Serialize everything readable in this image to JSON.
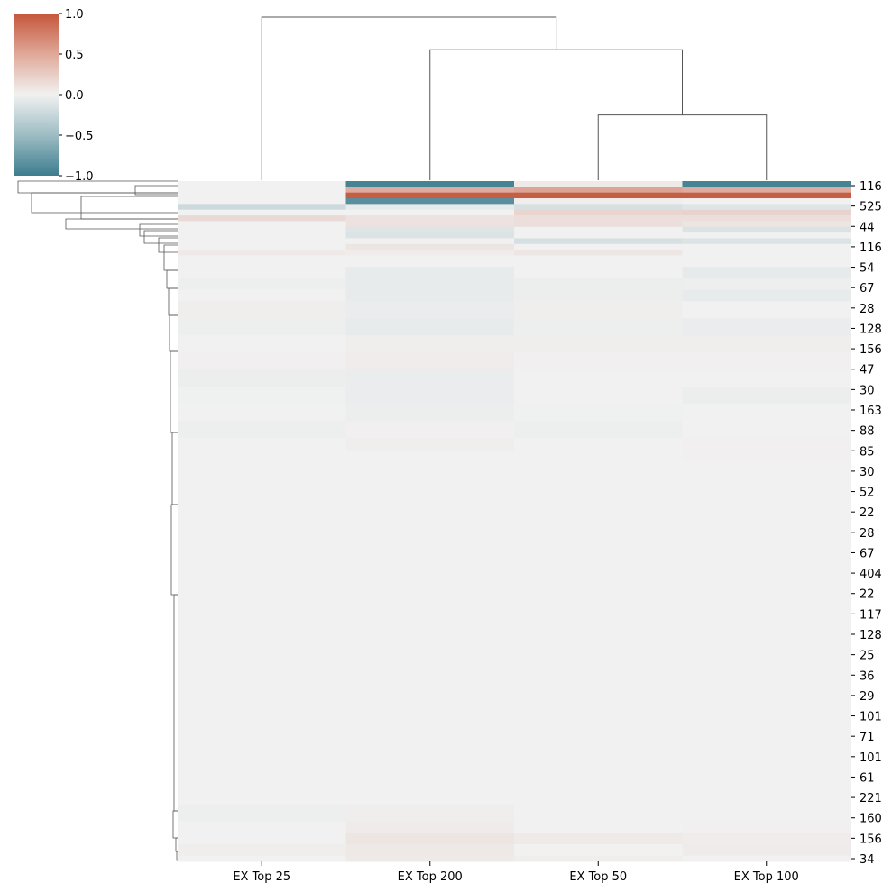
{
  "chart_data": {
    "type": "heatmap",
    "subtype": "clustermap",
    "title": "",
    "xlabel": "",
    "ylabel": "",
    "columns": [
      "EX Top 25",
      "EX Top 200",
      "EX Top 50",
      "EX Top 100"
    ],
    "row_tick_labels": [
      "116",
      "525",
      "44",
      "116",
      "54",
      "67",
      "28",
      "128",
      "156",
      "47",
      "30",
      "163",
      "88",
      "85",
      "30",
      "52",
      "22",
      "28",
      "67",
      "404",
      "22",
      "117",
      "128",
      "25",
      "36",
      "29",
      "101",
      "71",
      "101",
      "61",
      "221",
      "160",
      "156",
      "34"
    ],
    "colorbar": {
      "min": -1.0,
      "max": 1.0,
      "ticks": [
        1.0,
        0.5,
        0.0,
        -0.5,
        -1.0
      ],
      "tick_labels": [
        "1.0",
        "0.5",
        "0.0",
        "−0.5",
        "−1.0"
      ],
      "colors": {
        "low": "#3d7d8e",
        "mid": "#f1f1f1",
        "high": "#c4563b"
      }
    },
    "row_bands": [
      {
        "rows": 1,
        "values": [
          0.0,
          -0.95,
          0.05,
          -0.95
        ]
      },
      {
        "rows": 1,
        "values": [
          0.0,
          0.45,
          0.5,
          0.45
        ]
      },
      {
        "rows": 1,
        "values": [
          0.0,
          0.95,
          0.95,
          0.95
        ]
      },
      {
        "rows": 1,
        "values": [
          0.0,
          -0.85,
          0.02,
          0.0
        ]
      },
      {
        "rows": 1,
        "values": [
          -0.2,
          -0.05,
          -0.15,
          -0.1
        ]
      },
      {
        "rows": 1,
        "values": [
          0.0,
          0.0,
          0.18,
          0.2
        ]
      },
      {
        "rows": 1,
        "values": [
          0.15,
          0.1,
          0.12,
          0.12
        ]
      },
      {
        "rows": 1,
        "values": [
          0.0,
          0.1,
          0.12,
          0.08
        ]
      },
      {
        "rows": 1,
        "values": [
          0.0,
          -0.1,
          0.0,
          -0.12
        ]
      },
      {
        "rows": 1,
        "values": [
          0.0,
          -0.12,
          0.0,
          0.0
        ]
      },
      {
        "rows": 1,
        "values": [
          0.0,
          0.0,
          -0.15,
          -0.12
        ]
      },
      {
        "rows": 1,
        "values": [
          0.0,
          0.08,
          0.0,
          0.0
        ]
      },
      {
        "rows": 1,
        "values": [
          0.05,
          0.03,
          0.07,
          0.0
        ]
      },
      {
        "rows": 2,
        "values": [
          0.0,
          0.0,
          0.0,
          0.0
        ]
      },
      {
        "rows": 2,
        "values": [
          0.0,
          -0.05,
          0.0,
          -0.06
        ]
      },
      {
        "rows": 2,
        "values": [
          -0.02,
          -0.05,
          -0.03,
          -0.02
        ]
      },
      {
        "rows": 2,
        "values": [
          0.0,
          -0.05,
          -0.03,
          -0.05
        ]
      },
      {
        "rows": 3,
        "values": [
          0.02,
          -0.04,
          0.02,
          0.0
        ]
      },
      {
        "rows": 3,
        "values": [
          -0.02,
          -0.05,
          -0.02,
          -0.04
        ]
      },
      {
        "rows": 3,
        "values": [
          0.0,
          0.02,
          0.02,
          0.02
        ]
      },
      {
        "rows": 3,
        "values": [
          0.01,
          0.03,
          0.01,
          0.01
        ]
      },
      {
        "rows": 3,
        "values": [
          -0.03,
          -0.04,
          0.0,
          0.0
        ]
      },
      {
        "rows": 3,
        "values": [
          -0.01,
          -0.04,
          0.0,
          -0.03
        ]
      },
      {
        "rows": 3,
        "values": [
          0.0,
          -0.03,
          -0.01,
          0.0
        ]
      },
      {
        "rows": 3,
        "values": [
          -0.02,
          0.01,
          -0.02,
          0.0
        ]
      },
      {
        "rows": 2,
        "values": [
          0.0,
          0.02,
          0.0,
          0.01
        ]
      },
      {
        "rows": 2,
        "values": [
          0.0,
          0.0,
          0.0,
          0.01
        ]
      },
      {
        "rows": 60,
        "values": [
          0.0,
          0.0,
          0.0,
          0.0
        ]
      },
      {
        "rows": 3,
        "values": [
          -0.02,
          0.02,
          0.0,
          0.0
        ]
      },
      {
        "rows": 2,
        "values": [
          0.0,
          0.04,
          0.0,
          0.01
        ]
      },
      {
        "rows": 2,
        "values": [
          0.0,
          0.08,
          0.05,
          0.03
        ]
      },
      {
        "rows": 2,
        "values": [
          0.02,
          0.06,
          0.0,
          0.04
        ]
      },
      {
        "rows": 1,
        "values": [
          0.0,
          0.05,
          0.02,
          0.0
        ]
      }
    ],
    "column_dendrogram": {
      "links": [
        {
          "left": "EX Top 50",
          "right": "EX Top 100",
          "height": 0.4
        },
        {
          "left": "EX Top 200",
          "right": "EX Top 50 + EX Top 100",
          "height": 0.8
        },
        {
          "left": "EX Top 25",
          "right": "EX Top 200 + EX Top 50 + EX Top 100",
          "height": 1.0
        }
      ]
    },
    "grid": false,
    "legend": "colorbar top-left"
  }
}
